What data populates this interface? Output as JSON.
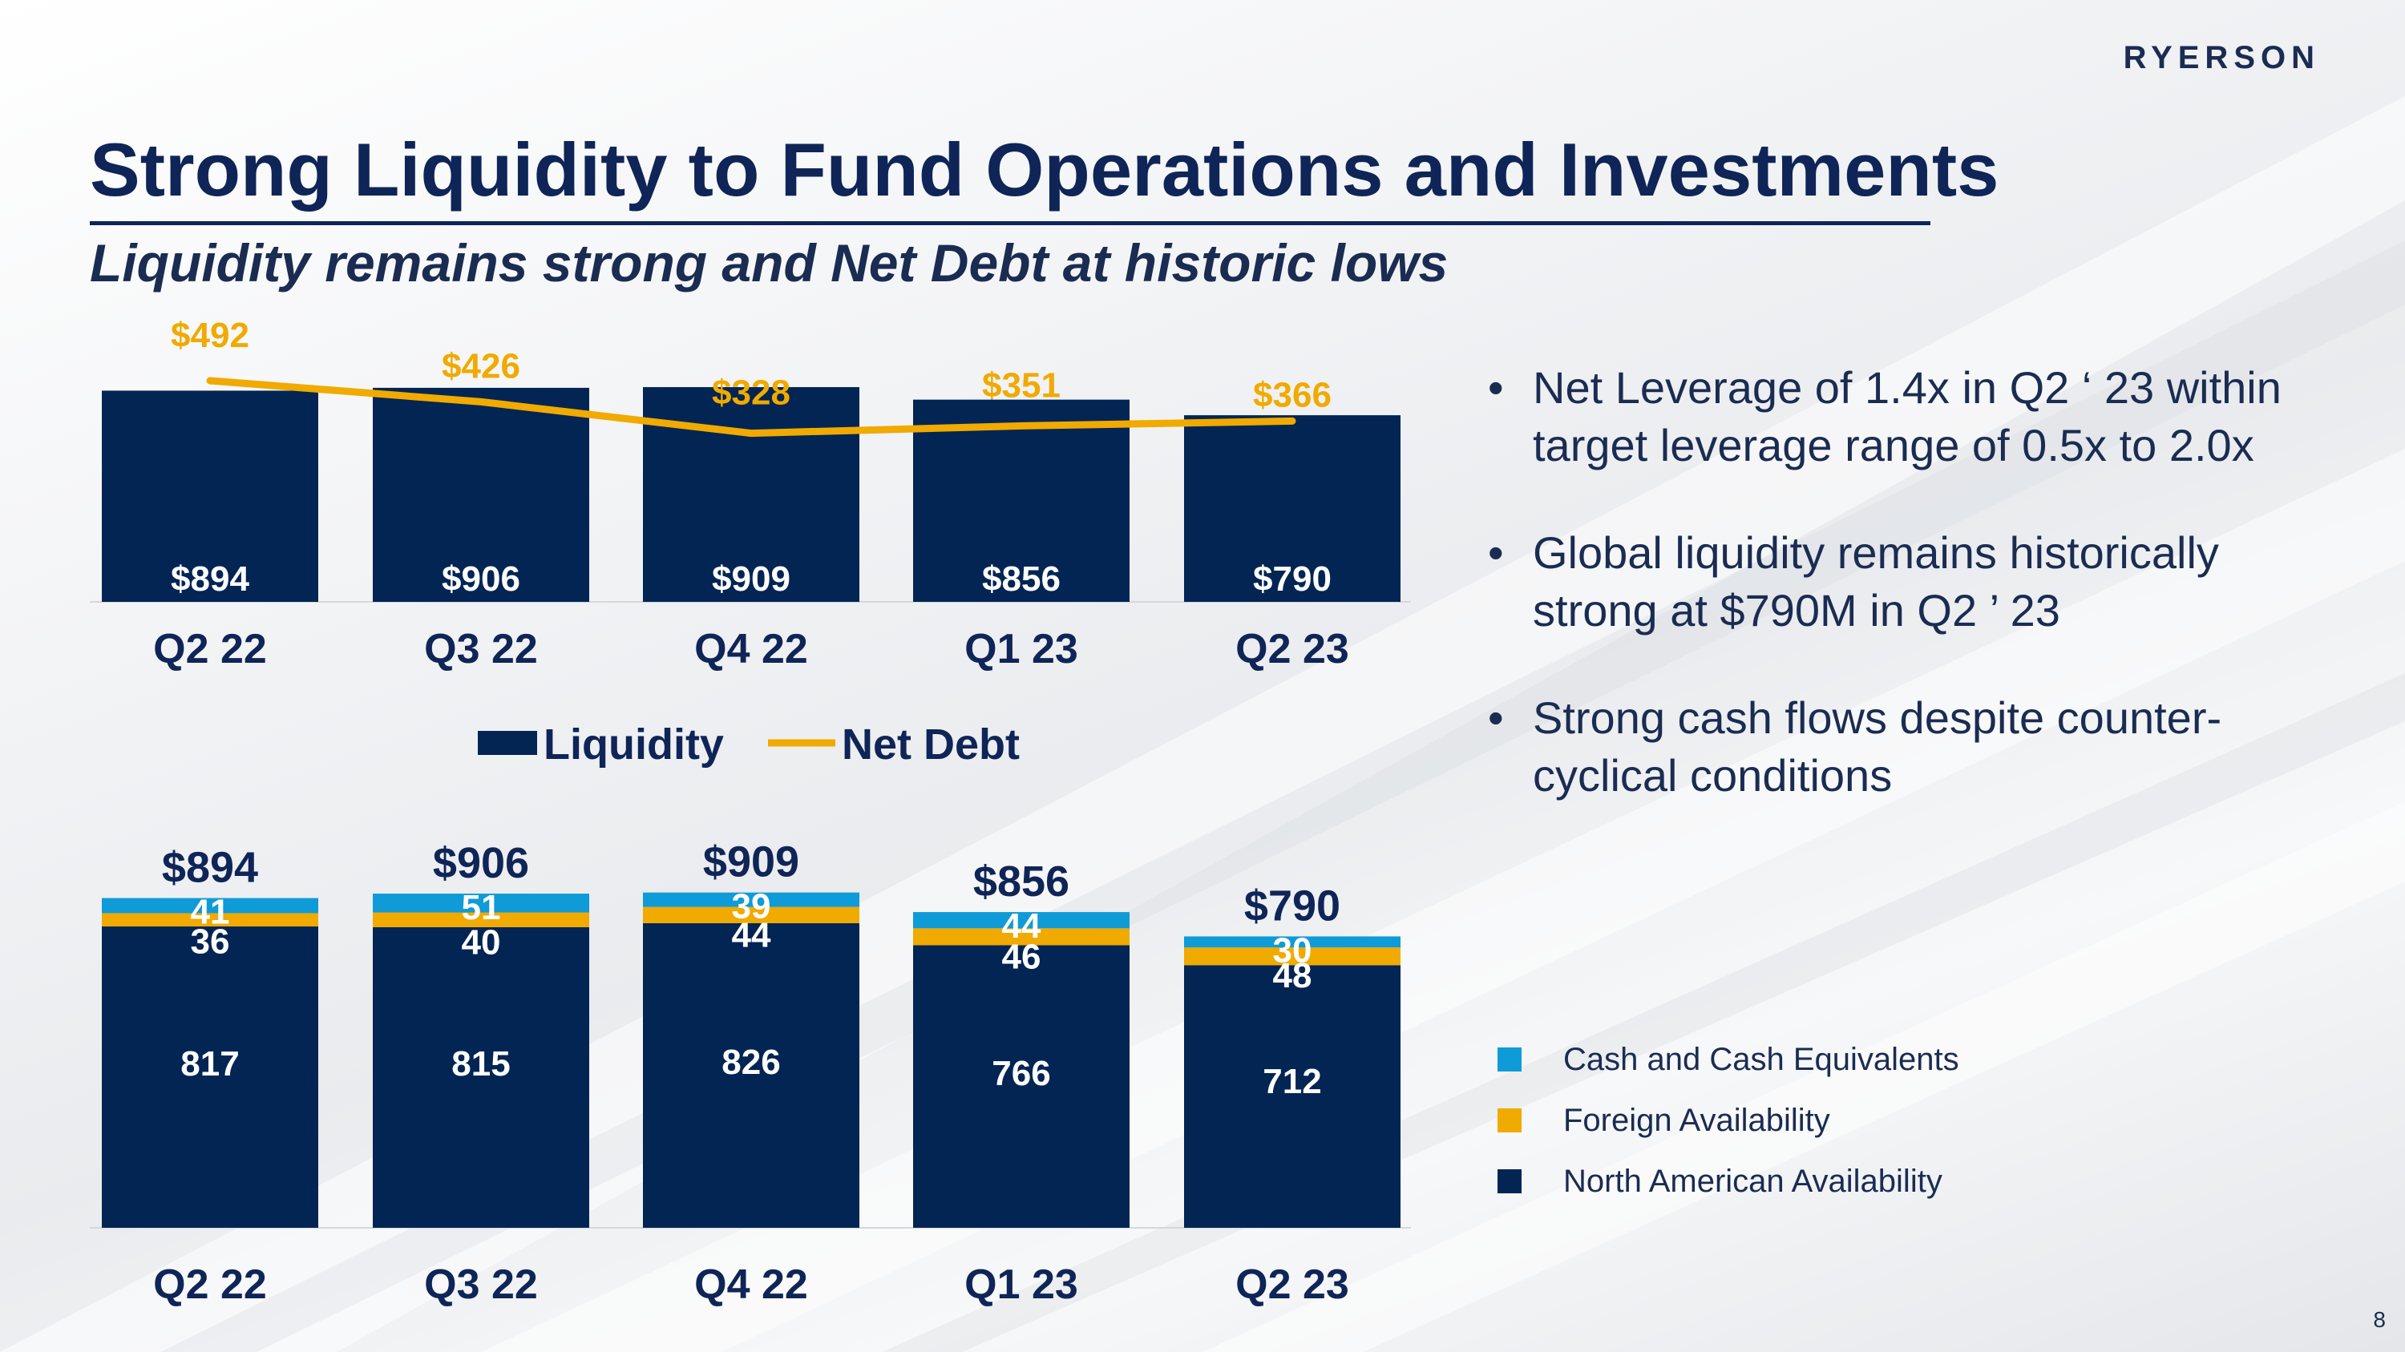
{
  "brand": {
    "logo_text": "RYERSON"
  },
  "title": "Strong Liquidity to Fund Operations and Investments",
  "subtitle": "Liquidity remains strong and Net Debt at historic lows",
  "colors": {
    "navy": "#022554",
    "gold": "#F0AA00",
    "cyan": "#0F9BD7",
    "title": "#0F2557"
  },
  "chart_data": [
    {
      "type": "bar",
      "title": "",
      "categories": [
        "Q2 22",
        "Q3 22",
        "Q4 22",
        "Q1 23",
        "Q2 23"
      ],
      "series": [
        {
          "name": "Liquidity",
          "type": "bar",
          "values": [
            894,
            906,
            909,
            856,
            790
          ],
          "labels": [
            "$894",
            "$906",
            "$909",
            "$856",
            "$790"
          ],
          "color": "#022554"
        },
        {
          "name": "Net Debt",
          "type": "line",
          "values": [
            492,
            426,
            328,
            351,
            366
          ],
          "labels": [
            "$492",
            "$426",
            "$328",
            "$351",
            "$366"
          ],
          "color": "#F0AA00"
        }
      ],
      "legend": "bottom"
    },
    {
      "type": "bar",
      "stacked": true,
      "title": "",
      "categories": [
        "Q2 22",
        "Q3 22",
        "Q4 22",
        "Q1 23",
        "Q2 23"
      ],
      "totals": [
        894,
        906,
        909,
        856,
        790
      ],
      "total_labels": [
        "$894",
        "$906",
        "$909",
        "$856",
        "$790"
      ],
      "series": [
        {
          "name": "North American Availability",
          "values": [
            817,
            815,
            826,
            766,
            712
          ],
          "color": "#022554"
        },
        {
          "name": "Foreign Availability",
          "values": [
            36,
            40,
            44,
            46,
            48
          ],
          "color": "#F0AA00"
        },
        {
          "name": "Cash and Cash Equivalents",
          "values": [
            41,
            51,
            39,
            44,
            30
          ],
          "color": "#0F9BD7"
        }
      ],
      "legend": "right"
    }
  ],
  "bullets": [
    "Net Leverage of 1.4x in Q2 ‘ 23 within target leverage range of 0.5x to 2.0x",
    "Global liquidity remains historically strong at $790M in Q2 ’ 23",
    "Strong cash flows despite counter-cyclical conditions"
  ],
  "legend_bottom": [
    {
      "label": "Cash and Cash Equivalents",
      "color": "#0F9BD7"
    },
    {
      "label": "Foreign Availability",
      "color": "#F0AA00"
    },
    {
      "label": "North American Availability",
      "color": "#022554"
    }
  ],
  "page_number": "8"
}
